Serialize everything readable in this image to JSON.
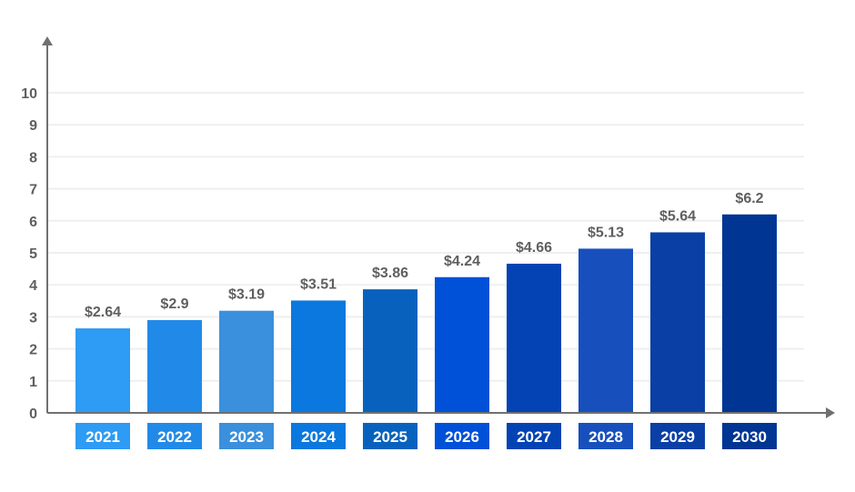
{
  "chart_data": {
    "type": "bar",
    "categories": [
      "2021",
      "2022",
      "2023",
      "2024",
      "2025",
      "2026",
      "2027",
      "2028",
      "2029",
      "2030"
    ],
    "values": [
      2.64,
      2.9,
      3.19,
      3.51,
      3.86,
      4.24,
      4.66,
      5.13,
      5.64,
      6.2
    ],
    "data_labels": [
      "$2.64",
      "$2.9",
      "$3.19",
      "$3.51",
      "$3.86",
      "$4.24",
      "$4.66",
      "$5.13",
      "$5.64",
      "$6.2"
    ],
    "title": "",
    "xlabel": "",
    "ylabel": "",
    "ylim": [
      0,
      10
    ],
    "yticks": [
      0,
      1,
      2,
      3,
      4,
      5,
      6,
      7,
      8,
      9,
      10
    ],
    "grid": true,
    "legend": "none",
    "bar_colors": [
      "#2e9bf4",
      "#218ae8",
      "#3a90dc",
      "#0a78df",
      "#0862bd",
      "#0050d8",
      "#0443b4",
      "#1750bd",
      "#0a3fa6",
      "#003594"
    ],
    "axis_color": "#707070",
    "grid_color": "#efefef",
    "label_color": "#5f5f5f",
    "category_text_color": "#ffffff"
  }
}
